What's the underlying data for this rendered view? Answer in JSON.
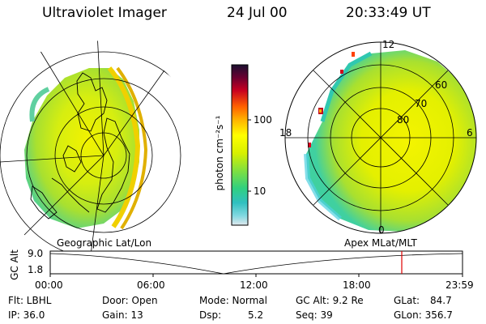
{
  "header": {
    "instrument": "Ultraviolet Imager",
    "date": "24 Jul 00",
    "time": "20:33:49 UT"
  },
  "colorbar": {
    "label": "photon cm⁻²s⁻¹",
    "ticks": [
      "100",
      "10"
    ],
    "colors": [
      "#1a1030",
      "#6a0030",
      "#c80020",
      "#ff6000",
      "#ffb000",
      "#ffff00",
      "#d8f000",
      "#80e040",
      "#30d080",
      "#30c0c0",
      "#80d8e0",
      "#e0e8ee"
    ]
  },
  "polar_plot": {
    "mlt_labels": {
      "top": "12",
      "left": "18",
      "right": "6",
      "bottom": "0"
    },
    "lat_labels": [
      "60",
      "70",
      "80"
    ]
  },
  "altitude_plot": {
    "left_title": "Geographic Lat/Lon",
    "right_title": "Apex MLat/MLT",
    "ylabel": "GC Alt",
    "yticks": [
      "9.0",
      "1.8"
    ],
    "xticks": [
      "00:00",
      "06:00",
      "12:00",
      "18:00",
      "23:59"
    ],
    "marker_color": "#e00000"
  },
  "footer": {
    "flt": "Flt: LBHL",
    "ip": "IP: 36.0",
    "door": "Door: Open",
    "gain": "Gain: 13",
    "mode": "Mode: Normal",
    "dsp": "Dsp:",
    "dsp_value": "5.2",
    "gc_alt": "GC Alt: 9.2 Re",
    "seq": "Seq: 39",
    "glat": "GLat:",
    "glat_value": "84.7",
    "glon": "GLon: 356.7"
  }
}
